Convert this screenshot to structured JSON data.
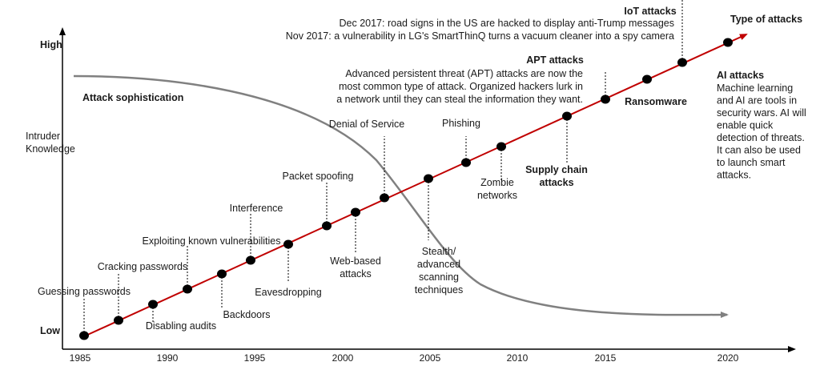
{
  "axes": {
    "y_high": "High",
    "y_low": "Low",
    "y_label": [
      "Intruder",
      "Knowledge"
    ],
    "x_ticks": [
      "1985",
      "1990",
      "1995",
      "2000",
      "2005",
      "2010",
      "2015",
      "2020"
    ],
    "series_end_label": "Type of attacks"
  },
  "curve_label": "Attack sophistication",
  "colors": {
    "line": "#c00000",
    "curve": "#808080",
    "axis": "#000000"
  },
  "events": {
    "guessing": [
      "Guessing passwords"
    ],
    "cracking": [
      "Cracking passwords"
    ],
    "disabling": [
      "Disabling audits"
    ],
    "exploiting": [
      "Exploiting known vulnerabilities"
    ],
    "backdoors": [
      "Backdoors"
    ],
    "interference": [
      "Interference"
    ],
    "eavesdropping": [
      "Eavesdropping"
    ],
    "packet": [
      "Packet spoofing"
    ],
    "webbased": [
      "Web-based",
      "attacks"
    ],
    "dos": [
      "Denial of Service"
    ],
    "stealth": [
      "Stealth/",
      "advanced",
      "scanning",
      "techniques"
    ],
    "phishing": [
      "Phishing"
    ],
    "zombie": [
      "Zombie",
      "networks"
    ],
    "supply": [
      "Supply chain",
      "attacks"
    ],
    "apt": [
      "APT attacks"
    ],
    "apt_desc": [
      "Advanced persistent threat (APT) attacks are now the",
      "most common type of attack. Organized hackers lurk in",
      "a network until they can steal the information they want."
    ],
    "ransomware": [
      "Ransomware"
    ],
    "iot": [
      "IoT attacks"
    ],
    "iot_desc": [
      "Dec 2017: road signs in the US are hacked to display anti-Trump messages",
      "Nov 2017: a vulnerability in LG's SmartThinQ turns a vacuum cleaner into a spy camera"
    ],
    "ai": [
      "AI attacks"
    ],
    "ai_desc": [
      "Machine learning",
      "and AI are tools in",
      "security wars. AI will",
      "enable quick",
      "detection of threats.",
      "It can also be used",
      "to launch smart",
      "attacks."
    ]
  }
}
